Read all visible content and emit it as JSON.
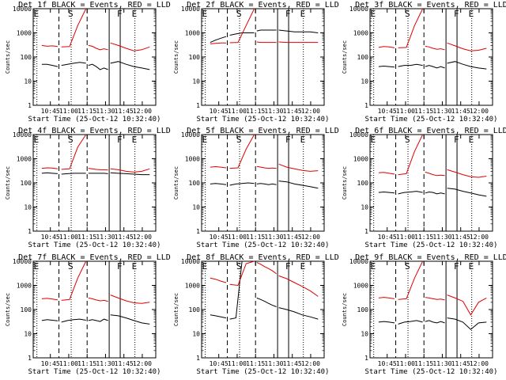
{
  "chart_data": [
    {
      "type": "line",
      "title": "Det 1f BLACK = Events, RED = LLD",
      "xlabel": "Start Time (25-Oct-12 10:32:40)",
      "ylabel": "Counts/sec",
      "x_ticks": [
        "10:45",
        "11:00",
        "11:15",
        "11:30",
        "11:45",
        "12:00"
      ],
      "y_ticks": [
        "1",
        "10",
        "100",
        "1000",
        "10000"
      ],
      "ylim": [
        1,
        10000
      ],
      "yscale": "log",
      "markers": [
        "E",
        "S",
        "F",
        "E"
      ],
      "series": [
        {
          "name": "BLACK = Events",
          "color": "#000000",
          "start": 0.05,
          "segments": [
            [
              50,
              50,
              45,
              40
            ],
            [
              45,
              50,
              55,
              60,
              55
            ],
            [
              45,
              50,
              40,
              30,
              35,
              30
            ],
            [
              55,
              65,
              50,
              40,
              35,
              30
            ]
          ]
        },
        {
          "name": "RED = LLD",
          "color": "#e00000",
          "start": 0,
          "segments": [
            [
              300,
              280,
              290,
              270
            ],
            [
              260,
              270,
              2000,
              10000
            ],
            [
              300,
              280,
              230,
              200,
              220,
              200
            ],
            [
              380,
              300,
              230,
              180,
              200,
              260
            ]
          ]
        }
      ]
    },
    {
      "type": "line",
      "title": "Det 2f BLACK = Events, RED = LLD",
      "xlabel": "Start Time (25-Oct-12 10:32:40)",
      "ylabel": "Counts/sec",
      "x_ticks": [
        "10:45",
        "11:00",
        "11:15",
        "11:30",
        "11:45",
        "12:00"
      ],
      "y_ticks": [
        "1",
        "10",
        "100",
        "1000",
        "10000"
      ],
      "ylim": [
        1,
        10000
      ],
      "yscale": "log",
      "markers": [
        "E",
        "S",
        "F",
        "E"
      ],
      "series": [
        {
          "name": "BLACK = Events",
          "color": "#000000",
          "start": 0.05,
          "segments": [
            [
              400,
              500,
              600,
              700
            ],
            [
              800,
              900,
              1000,
              1000,
              1000
            ],
            [
              1200,
              1300,
              1300,
              1300,
              1300,
              1300
            ],
            [
              1300,
              1200,
              1100,
              1100,
              1100,
              1000
            ]
          ]
        },
        {
          "name": "RED = LLD",
          "color": "#e00000",
          "start": 0,
          "segments": [
            [
              350,
              370,
              380,
              380
            ],
            [
              390,
              400,
              2000,
              10000
            ],
            [
              420,
              400,
              400,
              400,
              400,
              400
            ],
            [
              420,
              400,
              400,
              400,
              400,
              400
            ]
          ]
        }
      ]
    },
    {
      "type": "line",
      "title": "Det 3f BLACK = Events, RED = LLD",
      "xlabel": "Start Time (25-Oct-12 10:32:40)",
      "ylabel": "Counts/sec",
      "x_ticks": [
        "10:45",
        "11:00",
        "11:15",
        "11:30",
        "11:45",
        "12:00"
      ],
      "y_ticks": [
        "1",
        "10",
        "100",
        "1000",
        "10000"
      ],
      "ylim": [
        1,
        10000
      ],
      "yscale": "log",
      "markers": [
        "E",
        "S",
        "F",
        "E"
      ],
      "series": [
        {
          "name": "BLACK = Events",
          "color": "#000000",
          "start": 0.05,
          "segments": [
            [
              40,
              42,
              40,
              38
            ],
            [
              40,
              45,
              45,
              50,
              45
            ],
            [
              40,
              45,
              40,
              35,
              40,
              35
            ],
            [
              55,
              65,
              50,
              40,
              35,
              32
            ]
          ]
        },
        {
          "name": "RED = LLD",
          "color": "#e00000",
          "start": 0,
          "segments": [
            [
              250,
              270,
              260,
              240
            ],
            [
              240,
              250,
              2000,
              10000
            ],
            [
              280,
              260,
              230,
              210,
              220,
              200
            ],
            [
              380,
              290,
              220,
              180,
              190,
              230
            ]
          ]
        }
      ]
    },
    {
      "type": "line",
      "title": "Det 4f BLACK = Events, RED = LLD",
      "xlabel": "Start Time (25-Oct-12 10:32:40)",
      "ylabel": "Counts/sec",
      "x_ticks": [
        "10:45",
        "11:00",
        "11:15",
        "11:30",
        "11:45",
        "12:00"
      ],
      "y_ticks": [
        "1",
        "10",
        "100",
        "1000",
        "10000"
      ],
      "ylim": [
        1,
        10000
      ],
      "yscale": "log",
      "markers": [
        "E",
        "S",
        "F",
        "E"
      ],
      "series": [
        {
          "name": "BLACK = Events",
          "color": "#000000",
          "start": 0.05,
          "segments": [
            [
              250,
              260,
              250,
              240
            ],
            [
              230,
              240,
              250,
              250,
              250
            ],
            [
              250,
              250,
              250,
              250,
              250,
              240
            ],
            [
              260,
              250,
              240,
              230,
              220,
              220
            ]
          ]
        },
        {
          "name": "RED = LLD",
          "color": "#e00000",
          "start": 0,
          "segments": [
            [
              400,
              420,
              410,
              380
            ],
            [
              360,
              380,
              3000,
              10000
            ],
            [
              400,
              380,
              360,
              350,
              350,
              340
            ],
            [
              380,
              350,
              300,
              280,
              300,
              380
            ]
          ]
        }
      ]
    },
    {
      "type": "line",
      "title": "Det 5f BLACK = Events, RED = LLD",
      "xlabel": "Start Time (25-Oct-12 10:32:40)",
      "ylabel": "Counts/sec",
      "x_ticks": [
        "10:45",
        "11:00",
        "11:15",
        "11:30",
        "11:45",
        "12:00"
      ],
      "y_ticks": [
        "1",
        "10",
        "100",
        "1000",
        "10000"
      ],
      "ylim": [
        1,
        10000
      ],
      "yscale": "log",
      "markers": [
        "E",
        "S",
        "F",
        "E"
      ],
      "series": [
        {
          "name": "BLACK = Events",
          "color": "#000000",
          "start": 0.05,
          "segments": [
            [
              90,
              95,
              90,
              85
            ],
            [
              80,
              90,
              95,
              100,
              95
            ],
            [
              90,
              95,
              90,
              85,
              90,
              85
            ],
            [
              120,
              110,
              90,
              80,
              70,
              60
            ]
          ]
        },
        {
          "name": "RED = LLD",
          "color": "#e00000",
          "start": 0,
          "segments": [
            [
              450,
              470,
              450,
              420
            ],
            [
              400,
              420,
              2500,
              10000
            ],
            [
              480,
              450,
              420,
              400,
              410,
              400
            ],
            [
              600,
              450,
              380,
              330,
              300,
              320
            ]
          ]
        }
      ]
    },
    {
      "type": "line",
      "title": "Det 6f BLACK = Events, RED = LLD",
      "xlabel": "Start Time (25-Oct-12 10:32:40)",
      "ylabel": "Counts/sec",
      "x_ticks": [
        "10:45",
        "11:00",
        "11:15",
        "11:30",
        "11:45",
        "12:00"
      ],
      "y_ticks": [
        "1",
        "10",
        "100",
        "1000",
        "10000"
      ],
      "ylim": [
        1,
        10000
      ],
      "yscale": "log",
      "markers": [
        "E",
        "S",
        "F",
        "E"
      ],
      "series": [
        {
          "name": "BLACK = Events",
          "color": "#000000",
          "start": 0.05,
          "segments": [
            [
              40,
              42,
              40,
              38
            ],
            [
              35,
              40,
              42,
              45,
              40
            ],
            [
              38,
              42,
              40,
              35,
              38,
              35
            ],
            [
              60,
              55,
              45,
              38,
              32,
              28
            ]
          ]
        },
        {
          "name": "RED = LLD",
          "color": "#e00000",
          "start": 0,
          "segments": [
            [
              260,
              270,
              250,
              230
            ],
            [
              220,
              240,
              2000,
              10000
            ],
            [
              280,
              250,
              220,
              200,
              210,
              200
            ],
            [
              350,
              280,
              220,
              180,
              170,
              190
            ]
          ]
        }
      ]
    },
    {
      "type": "line",
      "title": "Det 7f BLACK = Events, RED = LLD",
      "xlabel": "Start Time (25-Oct-12 10:32:40)",
      "ylabel": "Counts/sec",
      "x_ticks": [
        "10:45",
        "11:00",
        "11:15",
        "11:30",
        "11:45",
        "12:00"
      ],
      "y_ticks": [
        "1",
        "10",
        "100",
        "1000",
        "10000"
      ],
      "ylim": [
        1,
        10000
      ],
      "yscale": "log",
      "markers": [
        "E",
        "S",
        "F",
        "E"
      ],
      "series": [
        {
          "name": "BLACK = Events",
          "color": "#000000",
          "start": 0.05,
          "segments": [
            [
              35,
              38,
              36,
              34
            ],
            [
              30,
              35,
              38,
              40,
              36
            ],
            [
              35,
              38,
              35,
              32,
              40,
              35
            ],
            [
              60,
              55,
              45,
              35,
              28,
              25
            ]
          ]
        },
        {
          "name": "RED = LLD",
          "color": "#e00000",
          "start": 0,
          "segments": [
            [
              280,
              290,
              270,
              250
            ],
            [
              240,
              260,
              2000,
              10000
            ],
            [
              300,
              280,
              250,
              230,
              240,
              220
            ],
            [
              400,
              300,
              230,
              190,
              180,
              200
            ]
          ]
        }
      ]
    },
    {
      "type": "line",
      "title": "Det 8f BLACK = Events, RED = LLD",
      "xlabel": "Start Time (25-Oct-12 10:32:40)",
      "ylabel": "Counts/sec",
      "x_ticks": [
        "10:45",
        "11:00",
        "11:15",
        "11:30",
        "11:45",
        "12:00"
      ],
      "y_ticks": [
        "1",
        "10",
        "100",
        "1000",
        "10000"
      ],
      "ylim": [
        1,
        10000
      ],
      "yscale": "log",
      "markers": [
        "E",
        "S",
        "F",
        "E"
      ],
      "series": [
        {
          "name": "BLACK = Events",
          "color": "#000000",
          "start": 0.05,
          "segments": [
            [
              60,
              55,
              50,
              45
            ],
            [
              40,
              45,
              10000,
              10000,
              10000
            ],
            [
              300,
              260,
              220,
              180,
              150,
              130
            ],
            [
              120,
              100,
              80,
              60,
              50,
              40
            ]
          ]
        },
        {
          "name": "RED = LLD",
          "color": "#e00000",
          "start": 0,
          "segments": [
            [
              2000,
              1800,
              1500,
              1300
            ],
            [
              1100,
              1000,
              8000,
              10000
            ],
            [
              9000,
              7500,
              6000,
              5000,
              4000,
              3000
            ],
            [
              2500,
              1900,
              1300,
              900,
              600,
              350
            ]
          ]
        }
      ]
    },
    {
      "type": "line",
      "title": "Det 9f BLACK = Events, RED = LLD",
      "xlabel": "Start Time (25-Oct-12 10:32:40)",
      "ylabel": "Counts/sec",
      "x_ticks": [
        "10:45",
        "11:00",
        "11:15",
        "11:30",
        "11:45",
        "12:00"
      ],
      "y_ticks": [
        "1",
        "10",
        "100",
        "1000",
        "10000"
      ],
      "ylim": [
        1,
        10000
      ],
      "yscale": "log",
      "markers": [
        "E",
        "S",
        "F",
        "E"
      ],
      "series": [
        {
          "name": "BLACK = Events",
          "color": "#000000",
          "start": 0.05,
          "segments": [
            [
              30,
              32,
              30,
              28
            ],
            [
              25,
              30,
              32,
              35,
              30
            ],
            [
              32,
              35,
              30,
              28,
              32,
              28
            ],
            [
              45,
              40,
              30,
              15,
              28,
              30
            ]
          ]
        },
        {
          "name": "RED = LLD",
          "color": "#e00000",
          "start": 0,
          "segments": [
            [
              300,
              320,
              300,
              280
            ],
            [
              260,
              280,
              2000,
              10000
            ],
            [
              320,
              300,
              280,
              260,
              270,
              250
            ],
            [
              400,
              300,
              220,
              60,
              200,
              300
            ]
          ]
        }
      ]
    }
  ]
}
